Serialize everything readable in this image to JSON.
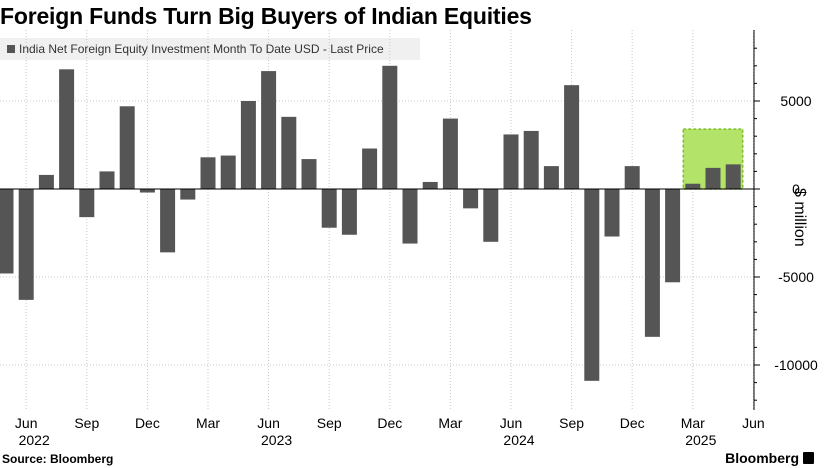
{
  "chart_data": {
    "type": "bar",
    "title": "Foreign Funds Turn Big Buyers of Indian Equities",
    "legend": [
      "India Net Foreign Equity Investment Month To Date USD - Last Price"
    ],
    "ylabel": "$ million",
    "ylim": [
      -12300,
      8700
    ],
    "yticks": [
      5000,
      0,
      -5000,
      -10000
    ],
    "ytick_labels": [
      "5000",
      "0",
      "-5000",
      "-10000"
    ],
    "grid": true,
    "bar_color": "#555555",
    "highlight_color": "#b4e36a",
    "categories": [
      "2022-05",
      "2022-06",
      "2022-07",
      "2022-08",
      "2022-09",
      "2022-10",
      "2022-11",
      "2022-12",
      "2023-01",
      "2023-02",
      "2023-03",
      "2023-04",
      "2023-05",
      "2023-06",
      "2023-07",
      "2023-08",
      "2023-09",
      "2023-10",
      "2023-11",
      "2023-12",
      "2024-01",
      "2024-02",
      "2024-03",
      "2024-04",
      "2024-05",
      "2024-06",
      "2024-07",
      "2024-08",
      "2024-09",
      "2024-10",
      "2024-11",
      "2024-12",
      "2025-01",
      "2025-02",
      "2025-03",
      "2025-04",
      "2025-05"
    ],
    "values": [
      -4800,
      -6300,
      800,
      6800,
      -1600,
      1000,
      4700,
      -200,
      -3600,
      -600,
      1800,
      1900,
      5000,
      6700,
      4100,
      1700,
      -2200,
      -2600,
      2300,
      7000,
      -3100,
      400,
      4000,
      -1100,
      -3000,
      3100,
      3300,
      1300,
      5900,
      -10900,
      -2700,
      1300,
      -8400,
      -5300,
      300,
      1200,
      1400
    ],
    "x_ticks": [
      {
        "label": "Jun",
        "year": "2022"
      },
      {
        "label": "Sep",
        "year": ""
      },
      {
        "label": "Dec",
        "year": ""
      },
      {
        "label": "Mar",
        "year": ""
      },
      {
        "label": "Jun",
        "year": "2023"
      },
      {
        "label": "Sep",
        "year": ""
      },
      {
        "label": "Dec",
        "year": ""
      },
      {
        "label": "Mar",
        "year": ""
      },
      {
        "label": "Jun",
        "year": "2024"
      },
      {
        "label": "Sep",
        "year": ""
      },
      {
        "label": "Dec",
        "year": ""
      },
      {
        "label": "Mar",
        "year": "2025"
      },
      {
        "label": "Jun",
        "year": ""
      }
    ],
    "highlight": {
      "from": "2025-03",
      "to": "2025-05",
      "y0": 0,
      "y1": 3400
    }
  },
  "footer": {
    "source": "Source: Bloomberg",
    "brand": "Bloomberg"
  }
}
